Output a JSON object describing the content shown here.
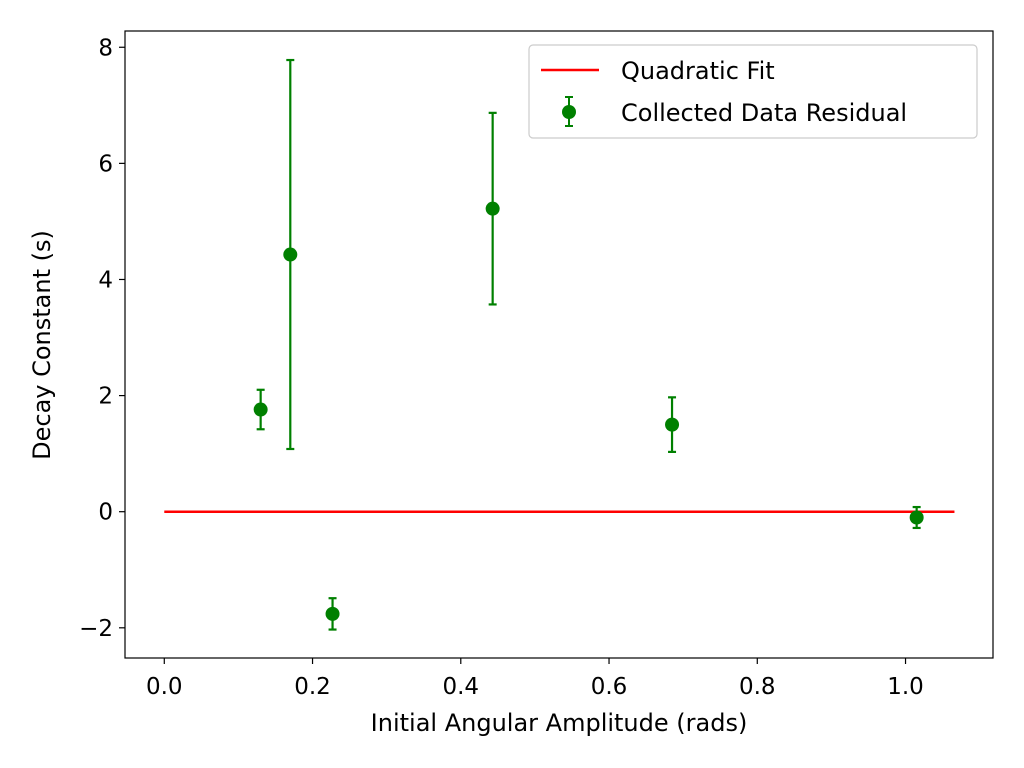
{
  "chart_data": {
    "type": "scatter",
    "title": "",
    "xlabel": "Initial Angular Amplitude (rads)",
    "ylabel": "Decay Constant (s)",
    "xlim": [
      -0.053,
      1.118
    ],
    "ylim": [
      -2.52,
      8.28
    ],
    "xticks": [
      0.0,
      0.2,
      0.4,
      0.6,
      0.8,
      1.0
    ],
    "xtick_labels": [
      "0.0",
      "0.2",
      "0.4",
      "0.6",
      "0.8",
      "1.0"
    ],
    "yticks": [
      -2,
      0,
      2,
      4,
      6,
      8
    ],
    "ytick_labels": [
      "−2",
      "0",
      "2",
      "4",
      "6",
      "8"
    ],
    "grid": false,
    "legend_position": "top-right",
    "series": [
      {
        "name": "Quadratic Fit",
        "kind": "line",
        "color": "#ff0000",
        "x": [
          0.0,
          1.066
        ],
        "y": [
          0.0,
          0.0
        ]
      },
      {
        "name": "Collected Data Residual",
        "kind": "errorbar",
        "color": "#008000",
        "points": [
          {
            "x": 0.13,
            "y": 1.76,
            "err": 0.34
          },
          {
            "x": 0.17,
            "y": 4.43,
            "err": 3.35
          },
          {
            "x": 0.227,
            "y": -1.76,
            "err": 0.27
          },
          {
            "x": 0.443,
            "y": 5.22,
            "err": 1.65
          },
          {
            "x": 0.685,
            "y": 1.5,
            "err": 0.47
          },
          {
            "x": 1.015,
            "y": -0.1,
            "err": 0.18
          }
        ]
      }
    ]
  }
}
